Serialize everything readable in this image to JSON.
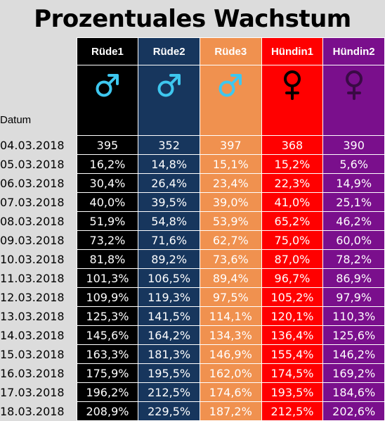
{
  "title": "Prozentuales Wachstum",
  "date_label": "Datum",
  "columns": [
    {
      "label": "Rüde1",
      "color": "#000000",
      "symbol": "male-icon",
      "symbol_color": "#3ec7ef"
    },
    {
      "label": "Rüde2",
      "color": "#17365d",
      "symbol": "male-icon",
      "symbol_color": "#3ec7ef"
    },
    {
      "label": "Rüde3",
      "color": "#f0914f",
      "symbol": "male-icon",
      "symbol_color": "#3ec7ef"
    },
    {
      "label": "Hündin1",
      "color": "#ff0000",
      "symbol": "female-icon",
      "symbol_color": "#000000"
    },
    {
      "label": "Hündin2",
      "color": "#7a0f8c",
      "symbol": "female-icon",
      "symbol_color": "#3a0a45"
    }
  ],
  "rows": [
    {
      "date": "04.03.2018",
      "values": [
        "395",
        "352",
        "397",
        "368",
        "390"
      ]
    },
    {
      "date": "05.03.2018",
      "values": [
        "16,2%",
        "14,8%",
        "15,1%",
        "15,2%",
        "5,6%"
      ]
    },
    {
      "date": "06.03.2018",
      "values": [
        "30,4%",
        "26,4%",
        "23,4%",
        "22,3%",
        "14,9%"
      ]
    },
    {
      "date": "07.03.2018",
      "values": [
        "40,0%",
        "39,5%",
        "39,0%",
        "41,0%",
        "25,1%"
      ]
    },
    {
      "date": "08.03.2018",
      "values": [
        "51,9%",
        "54,8%",
        "53,9%",
        "65,2%",
        "46,2%"
      ]
    },
    {
      "date": "09.03.2018",
      "values": [
        "73,2%",
        "71,6%",
        "62,7%",
        "75,0%",
        "60,0%"
      ]
    },
    {
      "date": "10.03.2018",
      "values": [
        "81,8%",
        "89,2%",
        "73,6%",
        "87,0%",
        "78,2%"
      ]
    },
    {
      "date": "11.03.2018",
      "values": [
        "101,3%",
        "106,5%",
        "89,4%",
        "96,7%",
        "86,9%"
      ]
    },
    {
      "date": "12.03.2018",
      "values": [
        "109,9%",
        "119,3%",
        "97,5%",
        "105,2%",
        "97,9%"
      ]
    },
    {
      "date": "13.03.2018",
      "values": [
        "125,3%",
        "141,5%",
        "114,1%",
        "120,1%",
        "110,3%"
      ]
    },
    {
      "date": "14.03.2018",
      "values": [
        "145,6%",
        "164,2%",
        "134,3%",
        "136,4%",
        "125,6%"
      ]
    },
    {
      "date": "15.03.2018",
      "values": [
        "163,3%",
        "181,3%",
        "146,9%",
        "155,4%",
        "146,2%"
      ]
    },
    {
      "date": "16.03.2018",
      "values": [
        "175,9%",
        "195,5%",
        "162,0%",
        "174,5%",
        "169,2%"
      ]
    },
    {
      "date": "17.03.2018",
      "values": [
        "196,2%",
        "212,5%",
        "174,6%",
        "193,5%",
        "184,6%"
      ]
    },
    {
      "date": "18.03.2018",
      "values": [
        "208,9%",
        "229,5%",
        "187,2%",
        "212,5%",
        "202,6%"
      ]
    }
  ]
}
